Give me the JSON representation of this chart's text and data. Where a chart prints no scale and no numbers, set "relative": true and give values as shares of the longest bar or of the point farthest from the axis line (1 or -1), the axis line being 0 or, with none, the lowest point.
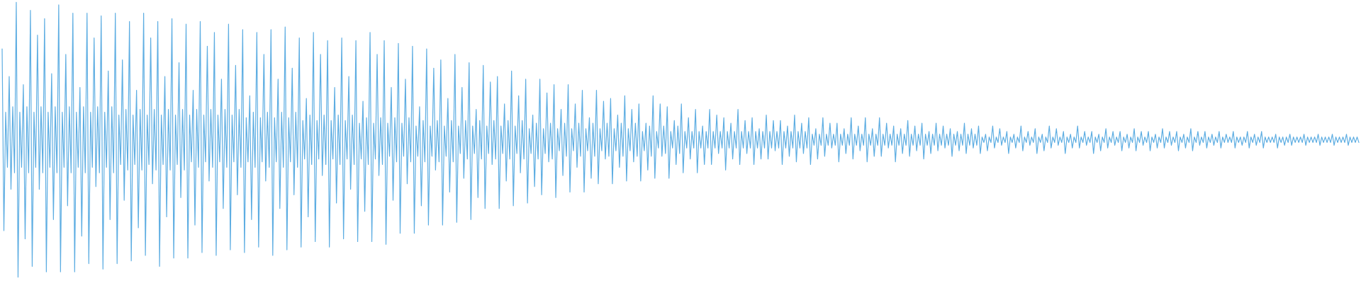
{
  "chart_data": {
    "type": "line",
    "relative": true,
    "color": "#5dade2",
    "marker": "none",
    "categories": [
      null,
      null,
      null,
      null,
      null,
      null,
      null,
      null,
      null,
      null,
      null,
      null,
      null,
      null,
      null,
      null,
      null,
      null,
      null,
      null,
      null,
      null,
      null,
      null,
      null,
      null,
      null,
      null,
      null,
      null,
      null,
      null,
      null,
      null,
      null,
      null,
      null,
      null,
      null,
      null,
      null,
      null,
      null,
      null,
      null,
      null,
      null,
      null,
      null,
      null,
      null,
      null,
      null,
      null,
      null,
      null,
      null,
      null,
      null,
      null,
      null,
      null,
      null,
      null,
      null,
      null,
      null,
      null,
      null,
      null,
      null,
      null,
      null,
      null,
      null,
      null,
      null,
      null,
      null,
      null,
      null,
      null,
      null,
      null,
      null,
      null,
      null,
      null,
      null,
      null,
      null,
      null,
      null,
      null,
      null,
      null,
      null,
      null,
      null,
      null,
      null,
      null,
      null,
      null,
      null,
      null,
      null,
      null,
      null,
      null,
      null,
      null,
      null,
      null,
      null,
      null,
      null,
      null,
      null,
      null,
      null,
      null,
      null,
      null,
      null,
      null,
      null,
      null,
      null,
      null,
      null,
      null,
      null,
      null,
      null,
      null,
      null,
      null,
      null,
      null,
      null,
      null,
      null,
      null,
      null,
      null,
      null,
      null,
      null,
      null,
      null,
      null,
      null,
      null,
      null,
      null,
      null,
      null,
      null,
      null,
      null,
      null,
      null,
      null,
      null,
      null,
      null,
      null,
      null,
      null,
      null,
      null,
      null,
      null,
      null,
      null,
      null,
      null,
      null,
      null,
      null,
      null,
      null,
      null,
      null,
      null,
      null,
      null,
      null,
      null,
      null,
      null,
      null,
      null,
      null,
      null,
      null,
      null,
      null,
      null,
      null,
      null,
      null,
      null,
      null,
      null,
      null,
      null,
      null,
      null,
      null,
      null,
      null,
      null,
      null,
      null,
      null,
      null,
      null,
      null,
      null,
      null,
      null,
      null,
      null,
      null,
      null,
      null,
      null,
      null,
      null,
      null,
      null,
      null,
      null,
      null,
      null,
      null,
      null,
      null,
      null,
      null,
      null,
      null,
      null,
      null,
      null,
      null,
      null,
      null,
      null,
      null,
      null,
      null,
      null,
      null,
      null,
      null,
      null,
      null,
      null,
      null,
      null,
      null,
      null,
      null,
      null,
      null,
      null,
      null,
      null,
      null,
      null,
      null,
      null,
      null,
      null,
      null,
      null,
      null,
      null,
      null,
      null,
      null,
      null,
      null,
      null,
      null,
      null,
      null,
      null,
      null,
      null,
      null,
      null,
      null,
      null,
      null,
      null,
      null,
      null,
      null,
      null,
      null,
      null,
      null,
      null,
      null,
      null,
      null,
      null,
      null,
      null,
      null,
      null,
      null,
      null,
      null,
      null,
      null,
      null,
      null,
      null,
      null,
      null,
      null,
      null,
      null,
      null,
      null,
      null,
      null,
      null,
      null,
      null,
      null,
      null,
      null,
      null,
      null,
      null,
      null,
      null,
      null,
      null,
      null,
      null,
      null,
      null,
      null,
      null,
      null,
      null,
      null,
      null,
      null,
      null,
      null,
      null,
      null,
      null,
      null,
      null,
      null,
      null,
      null,
      null,
      null,
      null,
      null,
      null,
      null,
      null,
      null,
      null,
      null,
      null,
      null,
      null,
      null,
      null,
      null,
      null,
      null,
      null,
      null,
      null,
      null,
      null,
      null,
      null,
      null,
      null,
      null,
      null,
      null,
      null,
      null,
      null,
      null,
      null,
      null,
      null,
      null,
      null,
      null,
      null,
      null,
      null,
      null,
      null,
      null,
      null,
      null,
      null,
      null,
      null,
      null,
      null,
      null,
      null,
      null,
      null,
      null,
      null,
      null,
      null,
      null,
      null,
      null,
      null,
      null,
      null,
      null,
      null,
      null,
      null,
      null,
      null,
      null,
      null,
      null,
      null,
      null,
      null,
      null,
      null,
      null,
      null,
      null,
      null,
      null,
      null,
      null,
      null,
      null,
      null,
      null,
      null,
      null,
      null,
      null,
      null,
      null,
      null,
      null,
      null,
      null,
      null,
      null,
      null,
      null,
      null,
      null,
      null,
      null,
      null,
      null,
      null,
      null,
      null,
      null,
      null,
      null,
      null,
      null,
      null,
      null,
      null,
      null,
      null,
      null,
      null,
      null,
      null,
      null,
      null,
      null,
      null,
      null,
      null,
      null,
      null,
      null,
      null,
      null,
      null,
      null,
      null,
      null,
      null,
      null,
      null,
      null,
      null,
      null,
      null,
      null,
      null,
      null,
      null,
      null,
      null,
      null,
      null,
      null,
      null,
      null,
      null,
      null,
      null,
      null,
      null,
      null,
      null,
      null,
      null,
      null,
      null,
      null,
      null,
      null,
      null,
      null,
      null,
      null,
      null,
      null,
      null,
      null,
      null,
      null,
      null,
      null,
      null,
      null,
      null,
      null,
      null,
      null,
      null,
      null,
      null,
      null,
      null,
      null,
      null,
      null,
      null,
      null,
      null,
      null,
      null,
      null,
      null,
      null,
      null,
      null,
      null,
      null,
      null,
      null,
      null,
      null,
      null,
      null,
      null,
      null,
      null,
      null,
      null,
      null,
      null,
      null,
      null,
      null,
      null,
      null,
      null,
      null,
      null,
      null,
      null,
      null,
      null,
      null,
      null,
      null,
      null,
      null,
      null,
      null,
      null,
      null,
      null,
      null,
      null,
      null,
      null,
      null,
      null,
      null,
      null,
      null,
      null,
      null,
      null,
      null,
      null,
      null,
      null,
      null,
      null,
      null,
      null,
      null,
      null,
      null,
      null,
      null,
      null,
      null,
      null,
      null,
      null,
      null,
      null,
      null,
      null,
      null,
      null,
      null,
      null,
      null,
      null,
      null,
      null,
      null,
      null,
      null,
      null,
      null,
      null,
      null,
      null,
      null,
      null,
      null,
      null,
      null,
      null,
      null,
      null,
      null,
      null,
      null,
      null,
      null,
      null,
      null,
      null,
      null,
      null,
      null,
      null,
      null,
      null,
      null,
      null,
      null,
      null,
      null,
      null,
      null,
      null,
      null,
      null,
      null,
      null,
      null,
      null,
      null,
      null,
      null,
      null,
      null,
      null,
      null,
      null,
      null,
      null,
      null,
      null,
      null,
      null,
      null,
      null,
      null,
      null,
      null,
      null,
      null,
      null,
      null,
      null,
      null,
      null,
      null,
      null,
      null,
      null,
      null,
      null,
      null,
      null,
      null,
      null,
      null,
      null,
      null,
      null,
      null,
      null,
      null,
      null,
      null,
      null,
      null,
      null,
      null,
      null,
      null,
      null,
      null,
      null,
      null,
      null,
      null,
      null,
      null,
      null,
      null,
      null,
      null,
      null,
      null,
      null,
      null
    ],
    "values": [
      0.83,
      0.17,
      0.6,
      0.4,
      0.73,
      0.32,
      0.62,
      0.38,
      1.0,
      0.0,
      0.6,
      0.4,
      0.7,
      0.14,
      0.62,
      0.38,
      0.97,
      0.04,
      0.6,
      0.4,
      0.88,
      0.32,
      0.62,
      0.38,
      0.94,
      0.02,
      0.6,
      0.4,
      0.74,
      0.21,
      0.62,
      0.38,
      0.99,
      0.02,
      0.6,
      0.4,
      0.81,
      0.26,
      0.62,
      0.38,
      0.96,
      0.02,
      0.6,
      0.4,
      0.69,
      0.15,
      0.62,
      0.38,
      0.96,
      0.05,
      0.6,
      0.4,
      0.87,
      0.33,
      0.62,
      0.38,
      0.95,
      0.03,
      0.6,
      0.4,
      0.75,
      0.21,
      0.62,
      0.38,
      0.96,
      0.05,
      0.59,
      0.41,
      0.79,
      0.28,
      0.61,
      0.39,
      0.93,
      0.06,
      0.59,
      0.41,
      0.68,
      0.18,
      0.61,
      0.39,
      0.96,
      0.08,
      0.59,
      0.41,
      0.87,
      0.34,
      0.61,
      0.39,
      0.93,
      0.04,
      0.59,
      0.41,
      0.73,
      0.22,
      0.61,
      0.39,
      0.94,
      0.07,
      0.59,
      0.41,
      0.78,
      0.29,
      0.61,
      0.39,
      0.92,
      0.07,
      0.59,
      0.42,
      0.68,
      0.19,
      0.61,
      0.4,
      0.93,
      0.09,
      0.59,
      0.42,
      0.84,
      0.35,
      0.61,
      0.4,
      0.89,
      0.08,
      0.59,
      0.42,
      0.72,
      0.25,
      0.61,
      0.4,
      0.92,
      0.1,
      0.59,
      0.42,
      0.77,
      0.3,
      0.61,
      0.4,
      0.9,
      0.09,
      0.58,
      0.42,
      0.66,
      0.21,
      0.6,
      0.4,
      0.89,
      0.11,
      0.58,
      0.42,
      0.81,
      0.35,
      0.6,
      0.4,
      0.9,
      0.08,
      0.58,
      0.42,
      0.72,
      0.25,
      0.6,
      0.4,
      0.91,
      0.1,
      0.58,
      0.42,
      0.76,
      0.3,
      0.6,
      0.4,
      0.87,
      0.11,
      0.57,
      0.43,
      0.65,
      0.22,
      0.59,
      0.41,
      0.89,
      0.13,
      0.57,
      0.43,
      0.81,
      0.37,
      0.59,
      0.41,
      0.86,
      0.11,
      0.57,
      0.43,
      0.69,
      0.27,
      0.59,
      0.41,
      0.87,
      0.14,
      0.57,
      0.43,
      0.73,
      0.32,
      0.59,
      0.41,
      0.86,
      0.13,
      0.56,
      0.43,
      0.64,
      0.24,
      0.58,
      0.41,
      0.89,
      0.13,
      0.56,
      0.43,
      0.81,
      0.37,
      0.58,
      0.41,
      0.86,
      0.12,
      0.56,
      0.44,
      0.69,
      0.28,
      0.58,
      0.42,
      0.85,
      0.16,
      0.56,
      0.44,
      0.72,
      0.34,
      0.58,
      0.42,
      0.84,
      0.16,
      0.55,
      0.44,
      0.62,
      0.26,
      0.57,
      0.42,
      0.83,
      0.19,
      0.55,
      0.44,
      0.76,
      0.39,
      0.57,
      0.42,
      0.79,
      0.19,
      0.55,
      0.44,
      0.65,
      0.31,
      0.57,
      0.42,
      0.81,
      0.2,
      0.55,
      0.45,
      0.69,
      0.36,
      0.57,
      0.43,
      0.78,
      0.21,
      0.55,
      0.45,
      0.61,
      0.29,
      0.57,
      0.43,
      0.77,
      0.25,
      0.55,
      0.45,
      0.71,
      0.41,
      0.57,
      0.43,
      0.73,
      0.25,
      0.55,
      0.45,
      0.63,
      0.35,
      0.57,
      0.43,
      0.75,
      0.26,
      0.55,
      0.45,
      0.66,
      0.38,
      0.57,
      0.43,
      0.72,
      0.27,
      0.54,
      0.45,
      0.59,
      0.33,
      0.56,
      0.43,
      0.72,
      0.3,
      0.54,
      0.45,
      0.67,
      0.42,
      0.56,
      0.43,
      0.7,
      0.29,
      0.54,
      0.46,
      0.61,
      0.37,
      0.56,
      0.44,
      0.7,
      0.31,
      0.54,
      0.46,
      0.63,
      0.4,
      0.56,
      0.44,
      0.68,
      0.31,
      0.54,
      0.46,
      0.58,
      0.36,
      0.56,
      0.44,
      0.68,
      0.34,
      0.54,
      0.46,
      0.64,
      0.43,
      0.56,
      0.44,
      0.65,
      0.34,
      0.54,
      0.46,
      0.59,
      0.4,
      0.56,
      0.44,
      0.66,
      0.35,
      0.54,
      0.46,
      0.61,
      0.42,
      0.56,
      0.44,
      0.63,
      0.35,
      0.53,
      0.46,
      0.56,
      0.39,
      0.55,
      0.44,
      0.66,
      0.36,
      0.53,
      0.47,
      0.63,
      0.44,
      0.55,
      0.45,
      0.62,
      0.36,
      0.53,
      0.47,
      0.57,
      0.41,
      0.55,
      0.45,
      0.63,
      0.38,
      0.53,
      0.47,
      0.58,
      0.43,
      0.53,
      0.47,
      0.61,
      0.38,
      0.53,
      0.47,
      0.55,
      0.41,
      0.53,
      0.47,
      0.61,
      0.41,
      0.53,
      0.47,
      0.59,
      0.45,
      0.53,
      0.47,
      0.58,
      0.39,
      0.53,
      0.47,
      0.56,
      0.43,
      0.53,
      0.47,
      0.61,
      0.41,
      0.53,
      0.47,
      0.57,
      0.45,
      0.53,
      0.47,
      0.58,
      0.41,
      0.53,
      0.47,
      0.54,
      0.43,
      0.53,
      0.47,
      0.59,
      0.43,
      0.53,
      0.47,
      0.57,
      0.46,
      0.53,
      0.47,
      0.57,
      0.41,
      0.53,
      0.47,
      0.55,
      0.44,
      0.53,
      0.47,
      0.59,
      0.42,
      0.53,
      0.47,
      0.56,
      0.45,
      0.53,
      0.47,
      0.58,
      0.41,
      0.52,
      0.48,
      0.54,
      0.43,
      0.52,
      0.48,
      0.58,
      0.44,
      0.52,
      0.48,
      0.56,
      0.47,
      0.52,
      0.48,
      0.56,
      0.42,
      0.52,
      0.48,
      0.54,
      0.45,
      0.52,
      0.48,
      0.58,
      0.43,
      0.52,
      0.48,
      0.55,
      0.46,
      0.52,
      0.48,
      0.58,
      0.42,
      0.52,
      0.48,
      0.54,
      0.44,
      0.52,
      0.48,
      0.58,
      0.44,
      0.52,
      0.48,
      0.56,
      0.47,
      0.52,
      0.48,
      0.55,
      0.42,
      0.52,
      0.48,
      0.54,
      0.45,
      0.52,
      0.48,
      0.57,
      0.44,
      0.52,
      0.48,
      0.55,
      0.46,
      0.52,
      0.48,
      0.56,
      0.43,
      0.52,
      0.48,
      0.53,
      0.45,
      0.52,
      0.48,
      0.56,
      0.46,
      0.52,
      0.48,
      0.55,
      0.47,
      0.52,
      0.48,
      0.54,
      0.44,
      0.52,
      0.48,
      0.53,
      0.46,
      0.52,
      0.48,
      0.56,
      0.45,
      0.52,
      0.48,
      0.54,
      0.47,
      0.52,
      0.48,
      0.55,
      0.45,
      0.51,
      0.49,
      0.52,
      0.46,
      0.51,
      0.49,
      0.55,
      0.47,
      0.51,
      0.49,
      0.54,
      0.48,
      0.51,
      0.49,
      0.53,
      0.45,
      0.51,
      0.49,
      0.52,
      0.47,
      0.51,
      0.49,
      0.55,
      0.46,
      0.51,
      0.49,
      0.53,
      0.48,
      0.51,
      0.49,
      0.54,
      0.45,
      0.51,
      0.49,
      0.52,
      0.46,
      0.51,
      0.49,
      0.55,
      0.47,
      0.51,
      0.49,
      0.54,
      0.48,
      0.51,
      0.49,
      0.53,
      0.45,
      0.51,
      0.49,
      0.52,
      0.47,
      0.51,
      0.49,
      0.55,
      0.47,
      0.51,
      0.49,
      0.53,
      0.48,
      0.51,
      0.49,
      0.53,
      0.45,
      0.51,
      0.49,
      0.52,
      0.46,
      0.51,
      0.49,
      0.54,
      0.47,
      0.51,
      0.49,
      0.53,
      0.48,
      0.51,
      0.49,
      0.53,
      0.46,
      0.51,
      0.49,
      0.52,
      0.47,
      0.51,
      0.49,
      0.54,
      0.46,
      0.51,
      0.49,
      0.53,
      0.48,
      0.51,
      0.49,
      0.53,
      0.46,
      0.51,
      0.49,
      0.52,
      0.47,
      0.51,
      0.49,
      0.54,
      0.47,
      0.51,
      0.49,
      0.53,
      0.48,
      0.51,
      0.49,
      0.53,
      0.46,
      0.51,
      0.49,
      0.52,
      0.47,
      0.51,
      0.49,
      0.54,
      0.46,
      0.51,
      0.49,
      0.53,
      0.48,
      0.51,
      0.49,
      0.53,
      0.47,
      0.51,
      0.49,
      0.52,
      0.48,
      0.51,
      0.49,
      0.53,
      0.47,
      0.51,
      0.49,
      0.52,
      0.49,
      0.51,
      0.49,
      0.53,
      0.47,
      0.51,
      0.49,
      0.51,
      0.48,
      0.51,
      0.49,
      0.53,
      0.47,
      0.51,
      0.49,
      0.52,
      0.48,
      0.51,
      0.49,
      0.53,
      0.47,
      0.51,
      0.49,
      0.51,
      0.49,
      0.51,
      0.49,
      0.52,
      0.47,
      0.51,
      0.49,
      0.51,
      0.48,
      0.51,
      0.49,
      0.52,
      0.48,
      0.51,
      0.49,
      0.51,
      0.49,
      0.51,
      0.49,
      0.52,
      0.48,
      0.51,
      0.49,
      0.51,
      0.49,
      0.51,
      0.49,
      0.52,
      0.48,
      0.51,
      0.49,
      0.51,
      0.49,
      0.51,
      0.49,
      0.52,
      0.48,
      0.51,
      0.49,
      0.51,
      0.49,
      0.51,
      0.49,
      0.52,
      0.48,
      0.51,
      0.49,
      0.51,
      0.49,
      0.51,
      0.49
    ]
  }
}
